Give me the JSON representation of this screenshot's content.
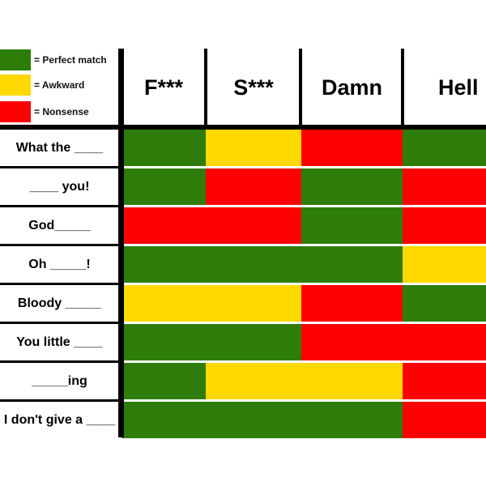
{
  "colors": {
    "perfect": "#2e7d0b",
    "awkward": "#ffd800",
    "nonsense": "#ff0000"
  },
  "legend": [
    {
      "key": "perfect",
      "label": "= Perfect match"
    },
    {
      "key": "awkward",
      "label": "= Awkward"
    },
    {
      "key": "nonsense",
      "label": "= Nonsense"
    }
  ],
  "chart_data": {
    "type": "heatmap",
    "columns": [
      "F***",
      "S***",
      "Damn",
      "Hell"
    ],
    "rows": [
      "What the ____",
      "____ you!",
      "God_____",
      "Oh _____!",
      "Bloody _____",
      "You little ____",
      "_____ing",
      "I don't give a ____"
    ],
    "cells": [
      [
        "perfect",
        "awkward",
        "nonsense",
        "perfect"
      ],
      [
        "perfect",
        "nonsense",
        "perfect",
        "nonsense"
      ],
      [
        "nonsense",
        "nonsense",
        "perfect",
        "nonsense"
      ],
      [
        "perfect",
        "perfect",
        "perfect",
        "awkward"
      ],
      [
        "awkward",
        "awkward",
        "nonsense",
        "perfect"
      ],
      [
        "perfect",
        "perfect",
        "nonsense",
        "nonsense"
      ],
      [
        "perfect",
        "awkward",
        "awkward",
        "nonsense"
      ],
      [
        "perfect",
        "perfect",
        "perfect",
        "nonsense"
      ]
    ]
  }
}
